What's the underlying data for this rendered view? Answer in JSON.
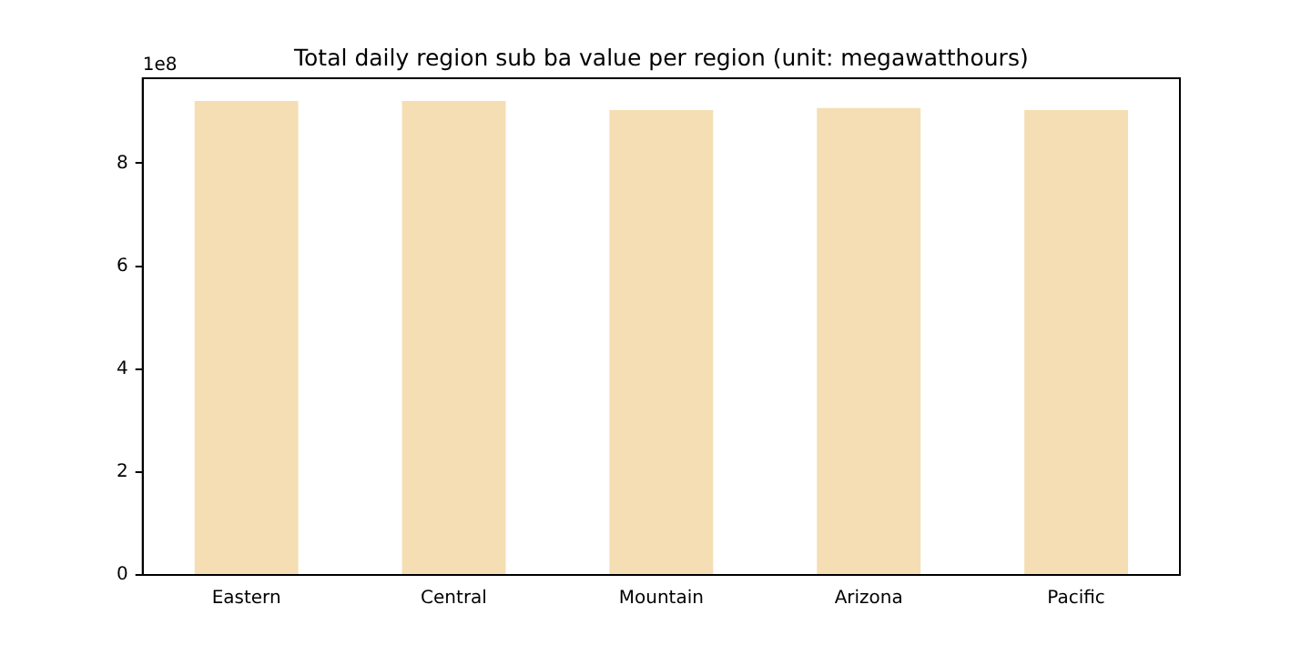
{
  "chart_data": {
    "type": "bar",
    "title": "Total daily region sub ba value per region (unit: megawatthours)",
    "categories": [
      "Eastern",
      "Central",
      "Mountain",
      "Arizona",
      "Pacific"
    ],
    "values": [
      9.21,
      9.21,
      9.03,
      9.07,
      9.03
    ],
    "color": "#f5deb3",
    "ylim": [
      0,
      9.65
    ],
    "yticks": [
      0,
      2,
      4,
      6,
      8
    ],
    "annotations": [
      "1e8"
    ],
    "grid": false,
    "legend": false
  }
}
